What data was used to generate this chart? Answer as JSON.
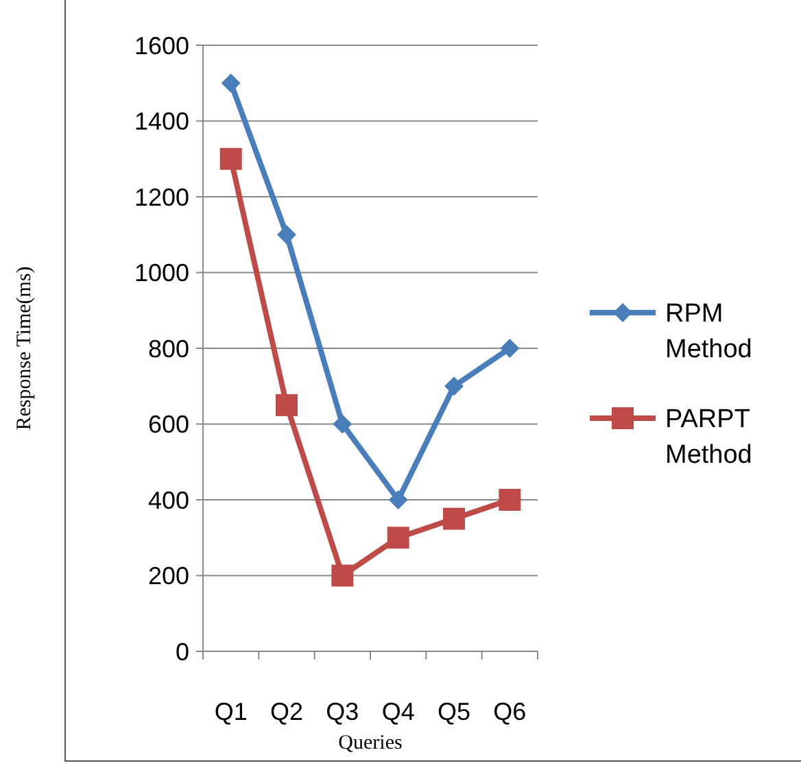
{
  "chart_data": {
    "type": "line",
    "xlabel": "Queries",
    "ylabel": "Response Time(ms)",
    "categories": [
      "Q1",
      "Q2",
      "Q3",
      "Q4",
      "Q5",
      "Q6"
    ],
    "series": [
      {
        "name": "RPM Method",
        "color": "#4a7ebb",
        "marker": "diamond",
        "values": [
          1500,
          1100,
          600,
          400,
          700,
          800
        ]
      },
      {
        "name": "PARPT Method",
        "color": "#be4b48",
        "marker": "square",
        "values": [
          1300,
          650,
          200,
          300,
          350,
          400
        ]
      }
    ],
    "ylim": [
      0,
      1600
    ],
    "yticks": [
      0,
      200,
      400,
      600,
      800,
      1000,
      1200,
      1400,
      1600
    ],
    "grid": "y",
    "legend": "right",
    "line_style": "solid"
  }
}
